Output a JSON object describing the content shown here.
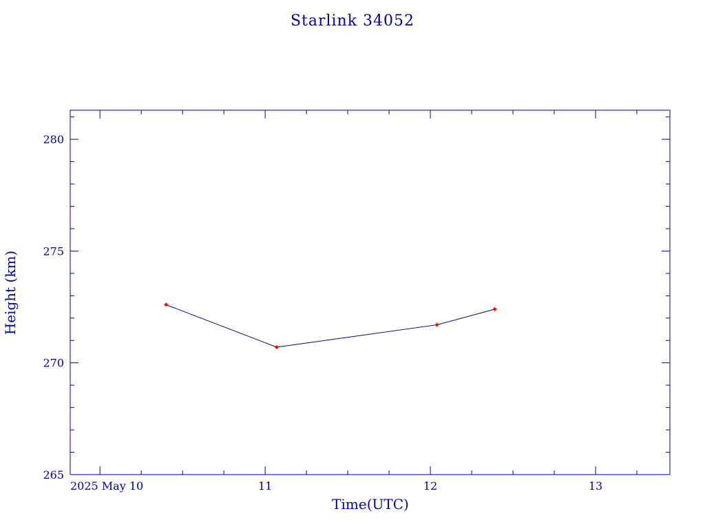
{
  "chart_data": {
    "type": "line",
    "title": "Starlink 34052",
    "xlabel": "Time(UTC)",
    "ylabel": "Height (km)",
    "xlim": [
      9.82,
      13.45
    ],
    "ylim": [
      265,
      281.3
    ],
    "x_ticks": [
      {
        "value": 10,
        "label": "2025 May 10"
      },
      {
        "value": 11,
        "label": "11"
      },
      {
        "value": 12,
        "label": "12"
      },
      {
        "value": 13,
        "label": "13"
      }
    ],
    "y_ticks": [
      {
        "value": 265,
        "label": "265"
      },
      {
        "value": 270,
        "label": "270"
      },
      {
        "value": 275,
        "label": "275"
      },
      {
        "value": 280,
        "label": "280"
      }
    ],
    "grid": false,
    "series": [
      {
        "x": [
          10.4,
          11.07,
          12.04,
          12.39
        ],
        "y": [
          272.6,
          270.7,
          271.7,
          272.4
        ]
      }
    ],
    "colors": {
      "axis": "#0000a0",
      "line": "#000080",
      "marker": "#ff0000"
    }
  }
}
